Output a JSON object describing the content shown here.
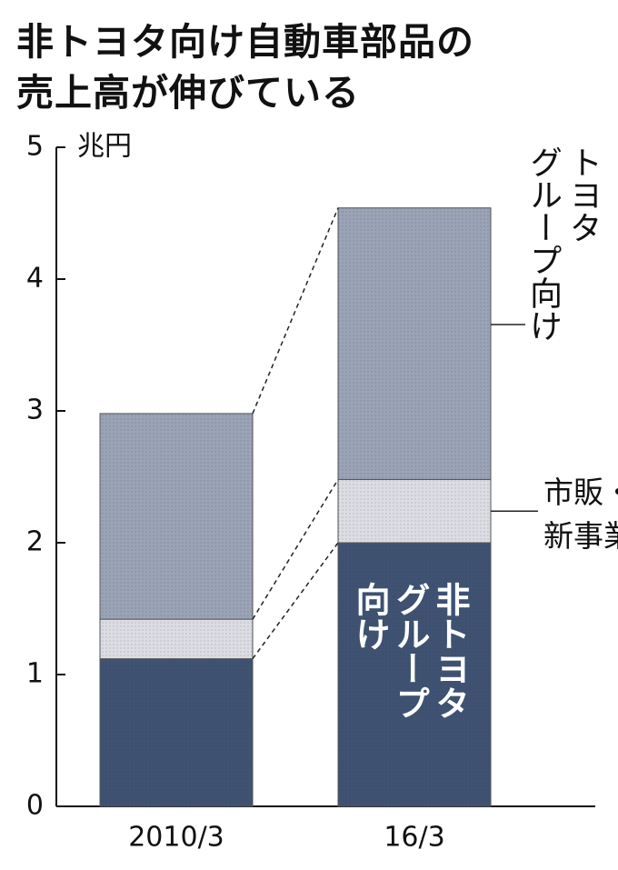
{
  "chart_data": {
    "type": "stacked-bar",
    "title": "非トヨタ向け自動車部品の\n売上高が伸びている",
    "unit": "兆円",
    "categories": [
      "2010/3",
      "16/3"
    ],
    "series": [
      {
        "name": "非トヨタ\nグループ\n向け",
        "color": "#3f5272",
        "values": [
          1.12,
          2.0
        ]
      },
      {
        "name": "市販・\n新事業",
        "color": "#dcdde3",
        "values": [
          0.3,
          0.48
        ]
      },
      {
        "name": "トヨタ\nグループ向け",
        "color": "#9ba3b6",
        "values": [
          1.56,
          2.06
        ]
      }
    ],
    "ylim": [
      0,
      5
    ],
    "yticks": [
      0,
      1,
      2,
      3,
      4,
      5
    ]
  }
}
